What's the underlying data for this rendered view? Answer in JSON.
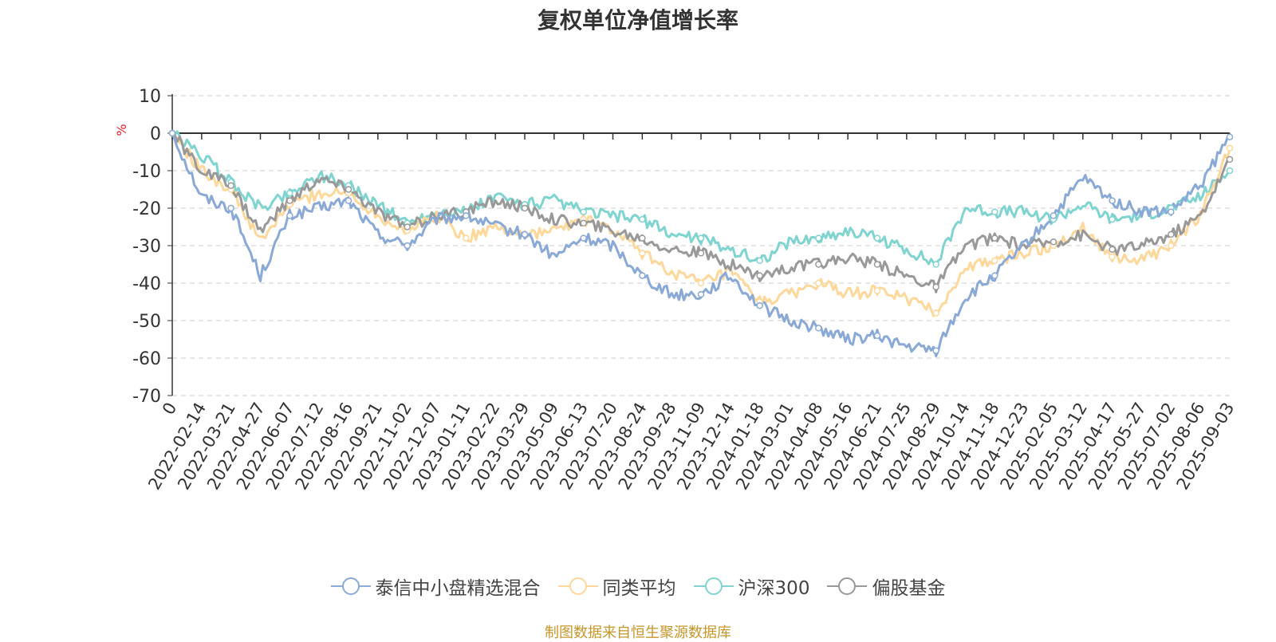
{
  "title": "复权单位净值增长率",
  "source": "制图数据来自恒生聚源数据库",
  "chart_data": {
    "type": "line",
    "title": "复权单位净值增长率",
    "ylabel": "%",
    "ylim": [
      -70,
      10
    ],
    "yticks": [
      10,
      0,
      -10,
      -20,
      -30,
      -40,
      -50,
      -60,
      -70
    ],
    "grid": true,
    "legend_position": "bottom",
    "categories": [
      "0",
      "2022-02-14",
      "2022-03-21",
      "2022-04-27",
      "2022-06-07",
      "2022-07-12",
      "2022-08-16",
      "2022-09-21",
      "2022-11-02",
      "2022-12-07",
      "2023-01-11",
      "2023-02-22",
      "2023-03-29",
      "2023-05-09",
      "2023-06-13",
      "2023-07-20",
      "2023-08-24",
      "2023-09-28",
      "2023-11-09",
      "2023-12-14",
      "2024-01-18",
      "2024-03-01",
      "2024-04-08",
      "2024-05-16",
      "2024-06-21",
      "2024-07-25",
      "2024-08-29",
      "2024-10-14",
      "2024-11-18",
      "2024-12-23",
      "2025-02-05",
      "2025-03-12",
      "2025-04-17",
      "2025-05-27",
      "2025-07-02",
      "2025-08-06",
      "2025-09-03"
    ],
    "series": [
      {
        "name": "泰信中小盘精选混合",
        "color": "#8aa9d6",
        "values": [
          0,
          -17,
          -20,
          -38,
          -22,
          -20,
          -18,
          -27,
          -30,
          -23,
          -22,
          -25,
          -27,
          -33,
          -28,
          -30,
          -38,
          -43,
          -43,
          -38,
          -46,
          -50,
          -52,
          -55,
          -54,
          -57,
          -58,
          -44,
          -38,
          -30,
          -22,
          -12,
          -18,
          -21,
          -21,
          -14,
          -1
        ]
      },
      {
        "name": "同类平均",
        "color": "#fdd89a",
        "values": [
          0,
          -10,
          -15,
          -29,
          -19,
          -16,
          -16,
          -22,
          -26,
          -22,
          -28,
          -25,
          -27,
          -26,
          -23,
          -26,
          -32,
          -37,
          -40,
          -37,
          -45,
          -43,
          -40,
          -43,
          -42,
          -44,
          -48,
          -36,
          -34,
          -32,
          -30,
          -25,
          -33,
          -34,
          -30,
          -22,
          -4
        ]
      },
      {
        "name": "沪深300",
        "color": "#7fd4d0",
        "values": [
          0,
          -6,
          -13,
          -20,
          -16,
          -11,
          -14,
          -19,
          -24,
          -21,
          -21,
          -17,
          -19,
          -18,
          -21,
          -22,
          -23,
          -27,
          -28,
          -31,
          -34,
          -29,
          -28,
          -26,
          -28,
          -31,
          -35,
          -20,
          -21,
          -21,
          -23,
          -19,
          -23,
          -22,
          -20,
          -17,
          -10
        ]
      },
      {
        "name": "偏股基金",
        "color": "#999999",
        "values": [
          0,
          -10,
          -14,
          -26,
          -18,
          -12,
          -15,
          -21,
          -25,
          -22,
          -21,
          -18,
          -20,
          -23,
          -24,
          -26,
          -28,
          -31,
          -32,
          -35,
          -38,
          -36,
          -35,
          -33,
          -35,
          -38,
          -41,
          -30,
          -28,
          -30,
          -29,
          -27,
          -31,
          -30,
          -27,
          -22,
          -7
        ]
      }
    ]
  }
}
